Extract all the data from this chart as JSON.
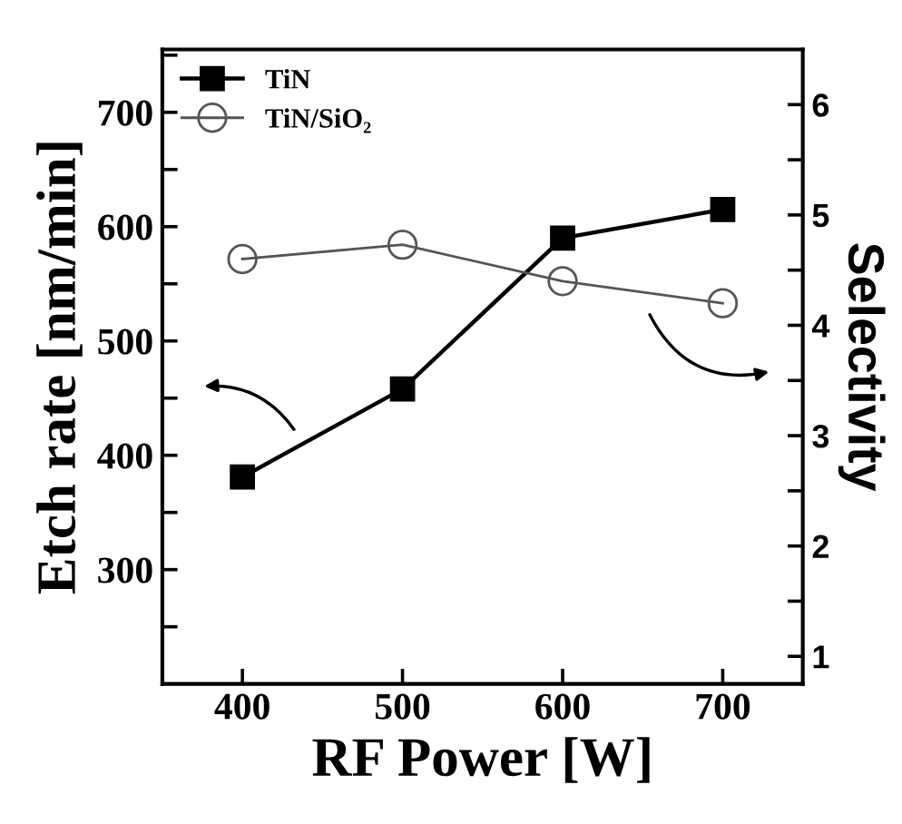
{
  "chart_data": {
    "type": "line",
    "xlabel": "RF Power [W]",
    "ylabel": "Etch rate [nm/min]",
    "y2label": "Selectivity",
    "x": [
      400,
      500,
      600,
      700
    ],
    "series": [
      {
        "name": "TiN",
        "color": "#000000",
        "values": [
          381,
          458,
          590,
          615
        ],
        "marker": "square"
      },
      {
        "name": "TiN/SiO₂",
        "color": "#555555",
        "values": [
          4.6,
          4.73,
          4.4,
          4.2
        ],
        "marker": "circle",
        "axis": "y2"
      }
    ],
    "xlim": [
      350,
      750
    ],
    "xticks": [
      400,
      500,
      600,
      700
    ],
    "ylim": [
      200,
      755
    ],
    "yticks": [
      {
        "value": 250,
        "label": null
      },
      300,
      {
        "value": 350,
        "label": null
      },
      400,
      {
        "value": 450,
        "label": null
      },
      500,
      {
        "value": 550,
        "label": null
      },
      600,
      {
        "value": 650,
        "label": null
      },
      700,
      {
        "value": 750,
        "label": null
      }
    ],
    "y2lim": [
      0.75,
      6.5
    ],
    "y2ticks": [
      1,
      {
        "value": 1.5,
        "label": null
      },
      2,
      {
        "value": 2.5,
        "label": null
      },
      3,
      {
        "value": 3.5,
        "label": null
      },
      4,
      {
        "value": 4.5,
        "label": null
      },
      5,
      {
        "value": 5.5,
        "label": null
      },
      6
    ],
    "legend": "top left",
    "grid": false,
    "line_style": "solid"
  }
}
